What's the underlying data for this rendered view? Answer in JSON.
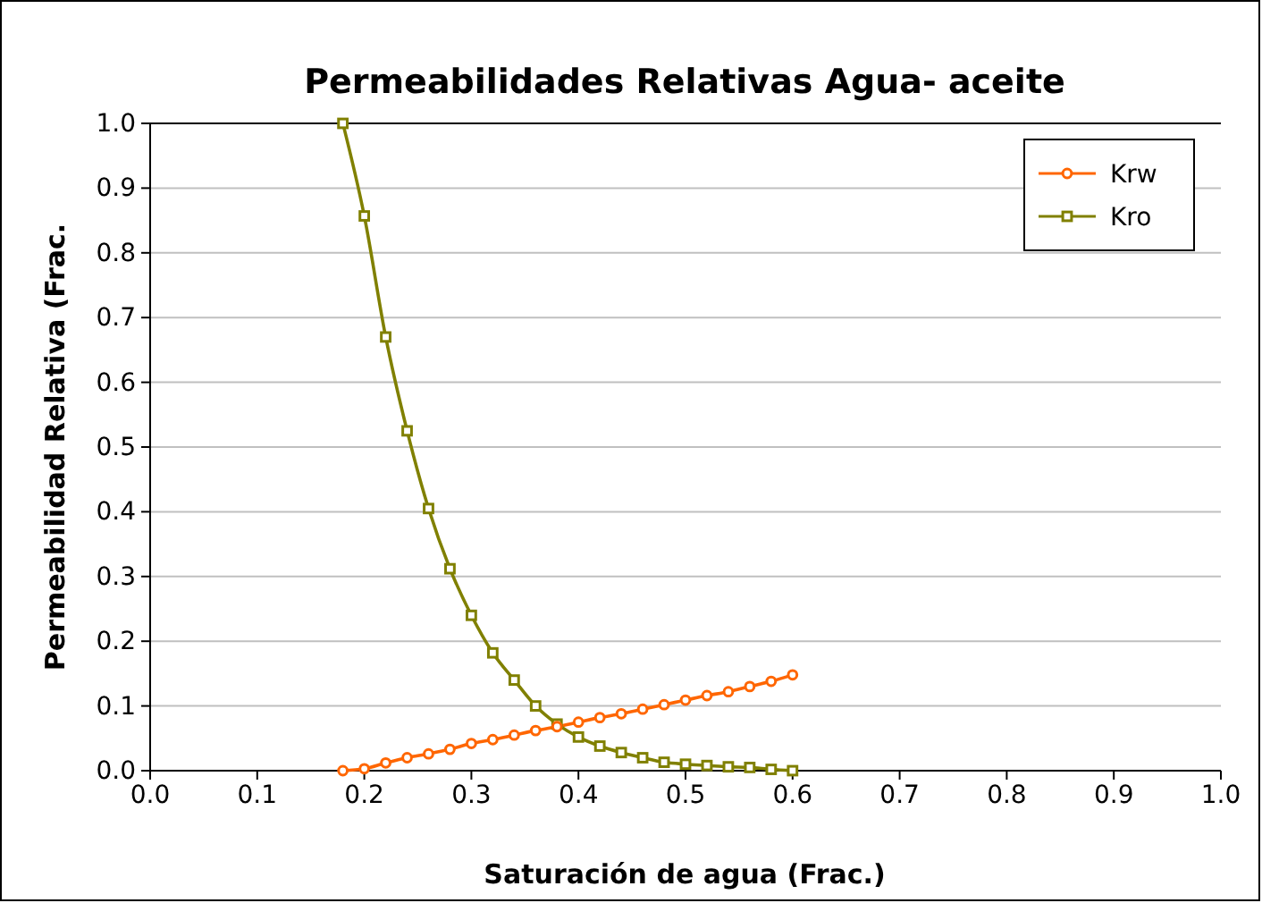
{
  "chart_data": {
    "type": "line",
    "title": "Permeabilidades Relativas Agua- aceite",
    "xlabel": "Saturación de agua (Frac.)",
    "ylabel": "Permeabilidad Relativa (Frac.",
    "x": [
      0.18,
      0.2,
      0.22,
      0.24,
      0.26,
      0.28,
      0.3,
      0.32,
      0.34,
      0.36,
      0.38,
      0.4,
      0.42,
      0.44,
      0.46,
      0.48,
      0.5,
      0.52,
      0.54,
      0.56,
      0.58,
      0.6
    ],
    "series": [
      {
        "name": "Krw",
        "color": "#ff6600",
        "marker": "circle",
        "values": [
          0,
          0.003,
          0.012,
          0.02,
          0.026,
          0.033,
          0.042,
          0.048,
          0.055,
          0.062,
          0.068,
          0.075,
          0.082,
          0.088,
          0.095,
          0.102,
          0.109,
          0.116,
          0.122,
          0.13,
          0.138,
          0.148
        ]
      },
      {
        "name": "Kro",
        "color": "#808000",
        "marker": "square",
        "values": [
          1.0,
          0.857,
          0.67,
          0.525,
          0.405,
          0.312,
          0.24,
          0.182,
          0.14,
          0.1,
          0.072,
          0.052,
          0.038,
          0.028,
          0.02,
          0.013,
          0.01,
          0.008,
          0.006,
          0.005,
          0.002,
          0.0
        ]
      }
    ],
    "xlim": [
      0,
      1
    ],
    "xticks": [
      {
        "value": 0,
        "label": "0.0"
      },
      0.1,
      0.2,
      0.3,
      0.4,
      0.5,
      0.6,
      0.7,
      0.8,
      0.9,
      {
        "value": 1,
        "label": "1.0"
      }
    ],
    "ylim": [
      0,
      1
    ],
    "yticks": [
      {
        "value": 0,
        "label": "0.0"
      },
      0.1,
      0.2,
      0.3,
      0.4,
      0.5,
      0.6,
      0.7,
      0.8,
      0.9,
      {
        "value": 1,
        "label": "1.0"
      }
    ],
    "grid": "y",
    "legend": "top right"
  }
}
